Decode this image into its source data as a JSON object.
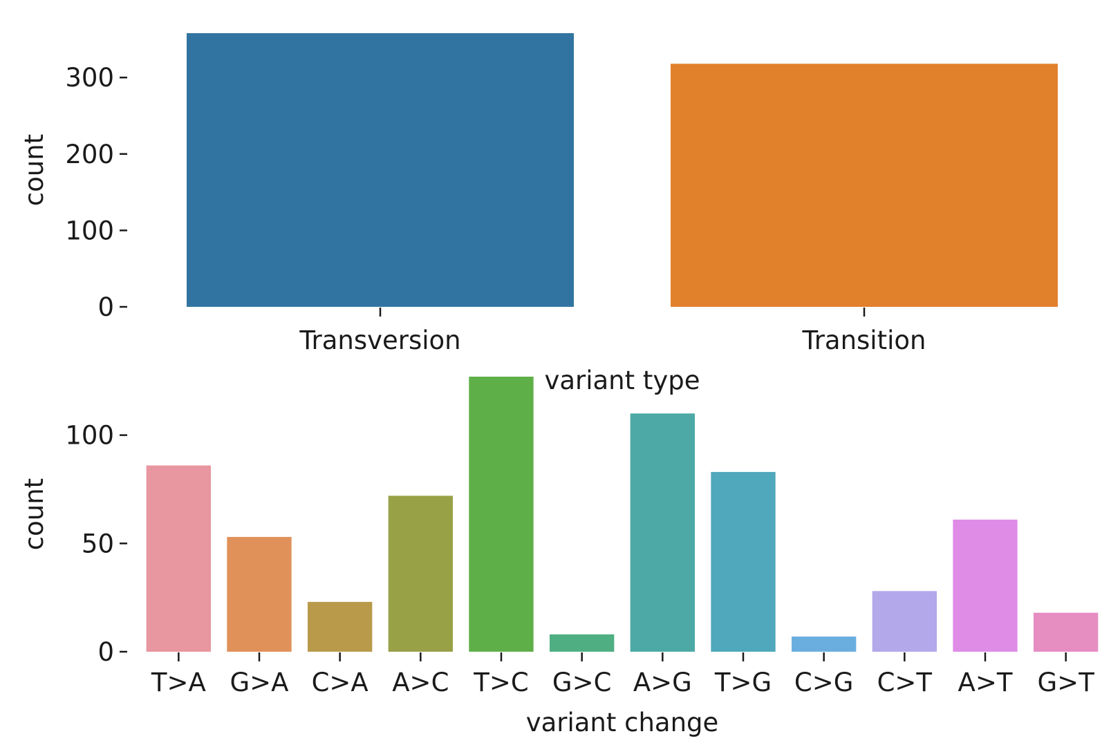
{
  "chart_data": [
    {
      "type": "bar",
      "xlabel": "variant type",
      "ylabel": "count",
      "categories": [
        "Transversion",
        "Transition"
      ],
      "values": [
        358,
        318
      ],
      "colors": [
        "#3274a1",
        "#e1812c"
      ],
      "ylim": [
        0,
        358
      ],
      "yticks": [
        0,
        100,
        200,
        300
      ],
      "grid": false
    },
    {
      "type": "bar",
      "xlabel": "variant change",
      "ylabel": "count",
      "categories": [
        "T>A",
        "G>A",
        "C>A",
        "A>C",
        "T>C",
        "G>C",
        "A>G",
        "T>G",
        "C>G",
        "C>T",
        "A>T",
        "G>T"
      ],
      "values": [
        86,
        53,
        23,
        72,
        127,
        8,
        110,
        83,
        7,
        28,
        61,
        18
      ],
      "colors": [
        "#e8969f",
        "#e0915a",
        "#b89a4a",
        "#98a146",
        "#5faf48",
        "#4faf82",
        "#4ca9a5",
        "#4fa8bb",
        "#6aaee0",
        "#b3a8ea",
        "#df8ce6",
        "#e68dc2"
      ],
      "ylim": [
        0,
        127
      ],
      "yticks": [
        0,
        50,
        100
      ],
      "grid": false
    }
  ]
}
